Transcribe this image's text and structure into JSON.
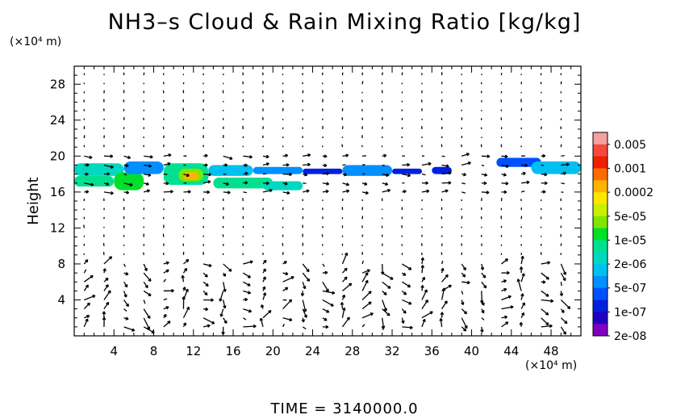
{
  "chart_data": {
    "type": "heatmap",
    "title": "NH3–s Cloud & Rain Mixing Ratio [kg/kg]",
    "ylabel": "Height",
    "y_unit": "(×10⁴ m)",
    "x_unit": "(×10⁴ m)",
    "footer": "TIME = 3140000.0",
    "xlim": [
      0,
      51
    ],
    "ylim": [
      0,
      30
    ],
    "x_ticks": [
      "4",
      "8",
      "12",
      "16",
      "20",
      "24",
      "28",
      "32",
      "36",
      "40",
      "44",
      "48"
    ],
    "y_ticks": [
      "4",
      "8",
      "12",
      "16",
      "20",
      "24",
      "28"
    ],
    "colorbar": {
      "labels": [
        "0.005",
        "0.001",
        "0.0002",
        "5e-05",
        "1e-05",
        "2e-06",
        "5e-07",
        "1e-07",
        "2e-08"
      ],
      "colors": [
        "#f4a0a0",
        "#f44a3c",
        "#ef1f00",
        "#ff6a00",
        "#ffb400",
        "#ffe600",
        "#c8f000",
        "#7ee600",
        "#00e02a",
        "#00e090",
        "#00d8c0",
        "#00c0f0",
        "#0090ff",
        "#0050ff",
        "#0020e0",
        "#2000c0",
        "#8000c0"
      ]
    },
    "cloud_patches": [
      {
        "x0": 0,
        "x1": 5,
        "y0": 17.8,
        "y1": 19.2,
        "level": 10
      },
      {
        "x0": 0,
        "x1": 4,
        "y0": 16.6,
        "y1": 17.8,
        "level": 9
      },
      {
        "x0": 4,
        "x1": 7,
        "y0": 16.2,
        "y1": 18.2,
        "level": 8
      },
      {
        "x0": 5,
        "x1": 9,
        "y0": 18.0,
        "y1": 19.4,
        "level": 12
      },
      {
        "x0": 9,
        "x1": 13.5,
        "y0": 16.8,
        "y1": 19.2,
        "level": 9
      },
      {
        "x0": 10.5,
        "x1": 13,
        "y0": 17.2,
        "y1": 18.6,
        "level": 7
      },
      {
        "x0": 11,
        "x1": 12.5,
        "y0": 17.4,
        "y1": 18.2,
        "level": 4
      },
      {
        "x0": 13.5,
        "x1": 18,
        "y0": 17.8,
        "y1": 19.0,
        "level": 11
      },
      {
        "x0": 14,
        "x1": 20,
        "y0": 16.4,
        "y1": 17.6,
        "level": 9
      },
      {
        "x0": 18,
        "x1": 23,
        "y0": 18.0,
        "y1": 18.8,
        "level": 12
      },
      {
        "x0": 19,
        "x1": 23,
        "y0": 16.2,
        "y1": 17.2,
        "level": 10
      },
      {
        "x0": 23,
        "x1": 27,
        "y0": 18.0,
        "y1": 18.6,
        "level": 14
      },
      {
        "x0": 27,
        "x1": 32,
        "y0": 17.8,
        "y1": 19.0,
        "level": 12
      },
      {
        "x0": 32,
        "x1": 35,
        "y0": 18.0,
        "y1": 18.6,
        "level": 14
      },
      {
        "x0": 36,
        "x1": 38,
        "y0": 18.0,
        "y1": 18.8,
        "level": 14
      },
      {
        "x0": 42.5,
        "x1": 47,
        "y0": 18.8,
        "y1": 19.8,
        "level": 13
      },
      {
        "x0": 46,
        "x1": 51,
        "y0": 18.0,
        "y1": 19.4,
        "level": 11
      }
    ]
  }
}
